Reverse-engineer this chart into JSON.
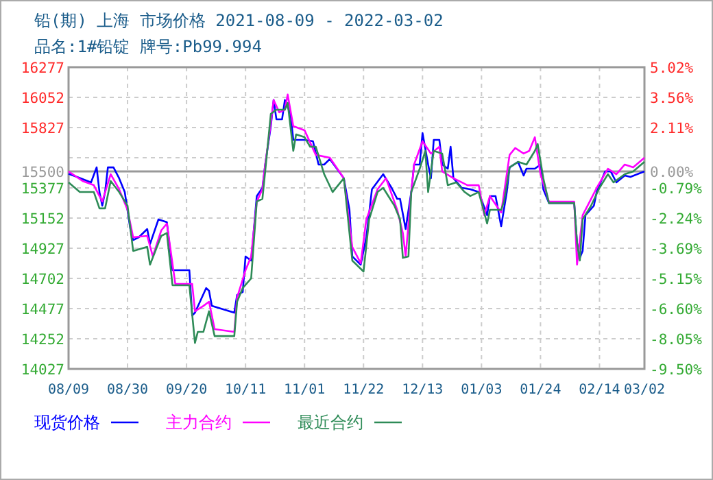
{
  "chart_data": {
    "type": "line",
    "title": "铅(期) 上海 市场价格 2021-08-09 - 2022-03-02",
    "subtitle": "品名:1#铅锭 牌号:Pb99.994",
    "xlim": [
      "2021-08-09",
      "2022-03-02"
    ],
    "xticks": [
      {
        "value": "2021-08-09",
        "label": "08/09"
      },
      {
        "value": "2021-08-30",
        "label": "08/30"
      },
      {
        "value": "2021-09-20",
        "label": "09/20"
      },
      {
        "value": "2021-10-11",
        "label": "10/11"
      },
      {
        "value": "2021-11-01",
        "label": "11/01"
      },
      {
        "value": "2021-11-22",
        "label": "11/22"
      },
      {
        "value": "2021-12-13",
        "label": "12/13"
      },
      {
        "value": "2022-01-03",
        "label": "01/03"
      },
      {
        "value": "2022-01-24",
        "label": "01/24"
      },
      {
        "value": "2022-02-14",
        "label": "02/14"
      },
      {
        "value": "2022-03-02",
        "label": "03/02"
      }
    ],
    "ylim": [
      14027,
      16277
    ],
    "yticks": [
      16277,
      16052,
      15827,
      {
        "value": 15602,
        "label": null
      },
      15500,
      15377,
      15152,
      14927,
      14702,
      14477,
      14252,
      14027
    ],
    "y2lim": [
      -9.5,
      5.02
    ],
    "y2ticks": [
      {
        "value": 5.02,
        "label": "5.02%"
      },
      {
        "value": 3.56,
        "label": "3.56%"
      },
      {
        "value": 2.11,
        "label": "2.11%"
      },
      {
        "value": 0,
        "label": "0.00%"
      },
      {
        "value": -0.79,
        "label": "-0.79%"
      },
      {
        "value": -2.24,
        "label": "-2.24%"
      },
      {
        "value": -3.69,
        "label": "-3.69%"
      },
      {
        "value": -5.15,
        "label": "-5.15%"
      },
      {
        "value": -6.6,
        "label": "-6.60%"
      },
      {
        "value": -8.05,
        "label": "-8.05%"
      },
      {
        "value": -9.5,
        "label": "-9.50%"
      }
    ],
    "ref_lines": [
      {
        "axis": "y",
        "value": 15500,
        "color": "#999999"
      }
    ],
    "grid": true,
    "legend": "bottom",
    "series": [
      {
        "name": "现货价格",
        "color": "#0000ff",
        "x": [
          "2021-08-09",
          "2021-08-12",
          "2021-08-17",
          "2021-08-19",
          "2021-08-20",
          "2021-08-21",
          "2021-08-22",
          "2021-08-23",
          "2021-08-25",
          "2021-08-27",
          "2021-08-29",
          "2021-08-31",
          "2021-09-01",
          "2021-09-03",
          "2021-09-06",
          "2021-09-07",
          "2021-09-10",
          "2021-09-13",
          "2021-09-15",
          "2021-09-21",
          "2021-09-22",
          "2021-09-23",
          "2021-09-27",
          "2021-09-28",
          "2021-09-29",
          "2021-10-07",
          "2021-10-08",
          "2021-10-10",
          "2021-10-11",
          "2021-10-13",
          "2021-10-15",
          "2021-10-17",
          "2021-10-18",
          "2021-10-20",
          "2021-10-21",
          "2021-10-22",
          "2021-10-24",
          "2021-10-25",
          "2021-10-27",
          "2021-10-28",
          "2021-11-01",
          "2021-11-04",
          "2021-11-06",
          "2021-11-08",
          "2021-11-10",
          "2021-11-15",
          "2021-11-17",
          "2021-11-18",
          "2021-11-21",
          "2021-11-23",
          "2021-11-25",
          "2021-11-29",
          "2021-12-02",
          "2021-12-04",
          "2021-12-05",
          "2021-12-07",
          "2021-12-09",
          "2021-12-10",
          "2021-12-12",
          "2021-12-13",
          "2021-12-15",
          "2021-12-16",
          "2021-12-17",
          "2021-12-19",
          "2021-12-20",
          "2021-12-22",
          "2021-12-23",
          "2021-12-24",
          "2021-12-27",
          "2021-12-30",
          "2022-01-02",
          "2022-01-05",
          "2022-01-06",
          "2022-01-08",
          "2022-01-10",
          "2022-01-12",
          "2022-01-13",
          "2022-01-16",
          "2022-01-18",
          "2022-01-19",
          "2022-01-22",
          "2022-01-24",
          "2022-01-25",
          "2022-01-27",
          "2022-02-05",
          "2022-02-06",
          "2022-02-07",
          "2022-02-08",
          "2022-02-09",
          "2022-02-12",
          "2022-02-13",
          "2022-02-16",
          "2022-02-18",
          "2022-02-20",
          "2022-02-23",
          "2022-02-25",
          "2022-03-02"
        ],
        "values": [
          15482,
          15459,
          15418,
          15530,
          15346,
          15244,
          15346,
          15530,
          15530,
          15449,
          15346,
          15070,
          14988,
          15009,
          15070,
          14958,
          15142,
          15121,
          14763,
          14763,
          14426,
          14446,
          14630,
          14610,
          14497,
          14446,
          14579,
          14600,
          14866,
          14835,
          15316,
          15377,
          15551,
          15837,
          16032,
          15888,
          15888,
          16032,
          15929,
          15735,
          15735,
          15725,
          15551,
          15551,
          15592,
          15449,
          15213,
          14866,
          14804,
          15009,
          15367,
          15479,
          15377,
          15295,
          15295,
          15070,
          15346,
          15551,
          15551,
          15786,
          15551,
          15449,
          15735,
          15735,
          15551,
          15520,
          15684,
          15449,
          15377,
          15367,
          15346,
          15173,
          15316,
          15316,
          15091,
          15346,
          15530,
          15571,
          15469,
          15520,
          15520,
          15551,
          15367,
          15264,
          15264,
          14968,
          14855,
          14907,
          15173,
          15244,
          15346,
          15500,
          15500,
          15418,
          15469,
          15459,
          15500
        ]
      },
      {
        "name": "主力合约",
        "color": "#ff00ff",
        "x": [
          "2021-08-09",
          "2021-08-14",
          "2021-08-18",
          "2021-08-21",
          "2021-08-24",
          "2021-08-27",
          "2021-08-30",
          "2021-09-01",
          "2021-09-06",
          "2021-09-08",
          "2021-09-11",
          "2021-09-13",
          "2021-09-16",
          "2021-09-22",
          "2021-09-23",
          "2021-09-26",
          "2021-09-28",
          "2021-09-30",
          "2021-10-07",
          "2021-10-08",
          "2021-10-11",
          "2021-10-13",
          "2021-10-15",
          "2021-10-17",
          "2021-10-18",
          "2021-10-20",
          "2021-10-21",
          "2021-10-23",
          "2021-10-25",
          "2021-10-26",
          "2021-10-28",
          "2021-11-01",
          "2021-11-05",
          "2021-11-10",
          "2021-11-15",
          "2021-11-18",
          "2021-11-21",
          "2021-11-23",
          "2021-11-27",
          "2021-11-30",
          "2021-12-04",
          "2021-12-06",
          "2021-12-07",
          "2021-12-09",
          "2021-12-10",
          "2021-12-13",
          "2021-12-16",
          "2021-12-19",
          "2021-12-20",
          "2021-12-24",
          "2021-12-29",
          "2022-01-02",
          "2022-01-04",
          "2022-01-06",
          "2022-01-10",
          "2022-01-13",
          "2022-01-15",
          "2022-01-18",
          "2022-01-20",
          "2022-01-22",
          "2022-01-24",
          "2022-01-27",
          "2022-02-05",
          "2022-02-06",
          "2022-02-08",
          "2022-02-11",
          "2022-02-13",
          "2022-02-17",
          "2022-02-20",
          "2022-02-23",
          "2022-02-26",
          "2022-03-02"
        ],
        "values": [
          15500,
          15428,
          15397,
          15275,
          15479,
          15367,
          15213,
          15009,
          15019,
          14866,
          15060,
          15111,
          14661,
          14661,
          14457,
          14497,
          14528,
          14324,
          14303,
          14559,
          14763,
          14866,
          15275,
          15367,
          15551,
          15858,
          16032,
          15940,
          15960,
          16073,
          15837,
          15807,
          15623,
          15602,
          15449,
          14937,
          14815,
          15142,
          15367,
          15449,
          15213,
          15040,
          14866,
          15346,
          15551,
          15725,
          15633,
          15684,
          15500,
          15449,
          15397,
          15397,
          15173,
          15316,
          15193,
          15623,
          15674,
          15633,
          15653,
          15755,
          15479,
          15275,
          15275,
          14804,
          15173,
          15295,
          15377,
          15520,
          15479,
          15551,
          15530,
          15602
        ]
      },
      {
        "name": "最近合约",
        "color": "#2e8b57",
        "x": [
          "2021-08-09",
          "2021-08-13",
          "2021-08-18",
          "2021-08-20",
          "2021-08-22",
          "2021-08-24",
          "2021-08-27",
          "2021-08-30",
          "2021-09-01",
          "2021-09-06",
          "2021-09-07",
          "2021-09-11",
          "2021-09-13",
          "2021-09-15",
          "2021-09-21",
          "2021-09-23",
          "2021-09-24",
          "2021-09-26",
          "2021-09-28",
          "2021-09-30",
          "2021-10-07",
          "2021-10-08",
          "2021-10-10",
          "2021-10-13",
          "2021-10-15",
          "2021-10-17",
          "2021-10-18",
          "2021-10-20",
          "2021-10-22",
          "2021-10-25",
          "2021-10-26",
          "2021-10-28",
          "2021-10-29",
          "2021-11-01",
          "2021-11-03",
          "2021-11-05",
          "2021-11-08",
          "2021-11-11",
          "2021-11-15",
          "2021-11-18",
          "2021-11-22",
          "2021-11-24",
          "2021-11-27",
          "2021-11-29",
          "2021-12-03",
          "2021-12-05",
          "2021-12-06",
          "2021-12-08",
          "2021-12-09",
          "2021-12-12",
          "2021-12-14",
          "2021-12-15",
          "2021-12-17",
          "2021-12-20",
          "2021-12-22",
          "2021-12-25",
          "2021-12-28",
          "2021-12-30",
          "2022-01-02",
          "2022-01-05",
          "2022-01-06",
          "2022-01-10",
          "2022-01-11",
          "2022-01-13",
          "2022-01-16",
          "2022-01-19",
          "2022-01-22",
          "2022-01-23",
          "2022-01-25",
          "2022-01-27",
          "2022-02-05",
          "2022-02-06",
          "2022-02-07",
          "2022-02-08",
          "2022-02-11",
          "2022-02-14",
          "2022-02-17",
          "2022-02-19",
          "2022-02-23",
          "2022-02-26",
          "2022-03-02"
        ],
        "values": [
          15418,
          15346,
          15346,
          15224,
          15224,
          15428,
          15346,
          15244,
          14907,
          14937,
          14804,
          15019,
          15040,
          14651,
          14651,
          14221,
          14303,
          14303,
          14457,
          14272,
          14272,
          14528,
          14630,
          14702,
          15275,
          15295,
          15500,
          15929,
          15960,
          15960,
          16011,
          15653,
          15776,
          15755,
          15684,
          15684,
          15479,
          15346,
          15449,
          14835,
          14753,
          15142,
          15346,
          15377,
          15244,
          15142,
          14855,
          14866,
          15346,
          15520,
          15653,
          15346,
          15653,
          15633,
          15397,
          15418,
          15346,
          15316,
          15346,
          15111,
          15213,
          15213,
          15275,
          15530,
          15571,
          15551,
          15653,
          15704,
          15449,
          15264,
          15264,
          14968,
          14835,
          15142,
          15244,
          15377,
          15479,
          15418,
          15479,
          15500,
          15571
        ]
      }
    ]
  }
}
